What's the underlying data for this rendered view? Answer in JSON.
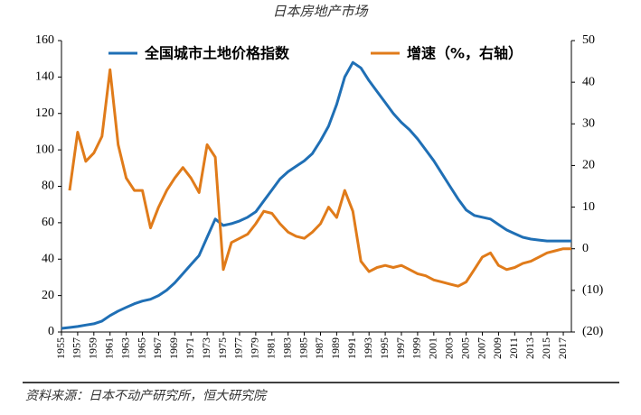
{
  "chart_data": {
    "type": "line",
    "title": "日本房地产市场",
    "source": "资料来源：日本不动产研究所，恒大研究院",
    "x": [
      1955,
      1956,
      1957,
      1958,
      1959,
      1960,
      1961,
      1962,
      1963,
      1964,
      1965,
      1966,
      1967,
      1968,
      1969,
      1970,
      1971,
      1972,
      1973,
      1974,
      1975,
      1976,
      1977,
      1978,
      1979,
      1980,
      1981,
      1982,
      1983,
      1984,
      1985,
      1986,
      1987,
      1988,
      1989,
      1990,
      1991,
      1992,
      1993,
      1994,
      1995,
      1996,
      1997,
      1998,
      1999,
      2000,
      2001,
      2002,
      2003,
      2004,
      2005,
      2006,
      2007,
      2008,
      2009,
      2010,
      2011,
      2012,
      2013,
      2014,
      2015,
      2016,
      2017,
      2018
    ],
    "xlim": [
      1955,
      2018
    ],
    "xticks": [
      1955,
      1957,
      1959,
      1961,
      1963,
      1965,
      1967,
      1969,
      1971,
      1973,
      1975,
      1977,
      1979,
      1981,
      1983,
      1985,
      1987,
      1989,
      1991,
      1993,
      1995,
      1997,
      1999,
      2001,
      2003,
      2005,
      2007,
      2009,
      2011,
      2013,
      2015,
      2017
    ],
    "ylim": [
      0,
      160
    ],
    "yticks": [
      0,
      20,
      40,
      60,
      80,
      100,
      120,
      140,
      160
    ],
    "y2lim": [
      -20,
      50
    ],
    "y2ticks": [
      {
        "value": -20,
        "label": "(20)"
      },
      {
        "value": -10,
        "label": "(10)"
      },
      0,
      10,
      20,
      30,
      40,
      50
    ],
    "negative_tick_color": "#c00000",
    "legend": "top",
    "series": [
      {
        "name": "全国城市土地价格指数",
        "color": "#1f6fb5",
        "values": [
          2,
          2.5,
          3,
          3.8,
          4.5,
          6,
          9,
          11.5,
          13.5,
          15.5,
          17,
          18,
          20,
          23,
          27,
          32,
          37,
          42,
          52,
          62,
          58.5,
          59.5,
          61,
          63,
          66,
          72,
          78,
          84,
          88,
          91,
          94,
          98,
          105,
          113,
          125,
          140,
          148,
          145,
          138,
          132,
          126,
          120,
          115,
          111,
          106,
          100,
          94,
          87,
          80,
          73,
          67,
          64,
          63,
          62,
          59,
          56,
          54,
          52,
          51,
          50.5,
          50,
          50,
          50,
          50
        ]
      },
      {
        "name": "增速（%，右轴）",
        "color": "#e07b1a",
        "axis": "y2",
        "values": [
          null,
          14,
          28,
          21,
          23,
          27,
          43,
          25,
          17,
          14,
          14,
          5,
          10,
          14,
          17,
          19.5,
          17,
          13.5,
          25,
          22,
          -5,
          1.5,
          2.5,
          3.5,
          6,
          9,
          8.5,
          6,
          4,
          3,
          2.5,
          4,
          6,
          10,
          7.5,
          14,
          9,
          -3,
          -5.5,
          -4.5,
          -4,
          -4.5,
          -4,
          -5,
          -6,
          -6.5,
          -7.5,
          -8,
          -8.5,
          -9,
          -8,
          -5,
          -2,
          -1,
          -4,
          -5,
          -4.5,
          -3.5,
          -3,
          -2,
          -1,
          -0.5,
          0,
          0
        ]
      }
    ]
  }
}
